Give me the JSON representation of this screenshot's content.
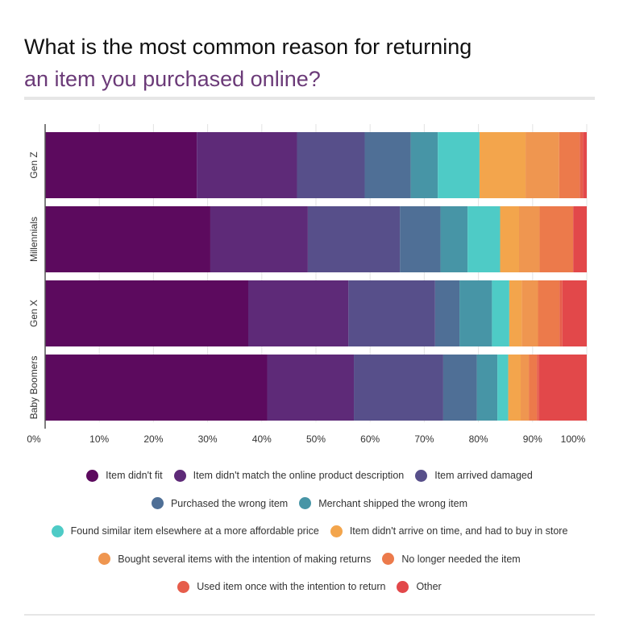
{
  "chart_data": {
    "type": "bar",
    "orientation": "horizontal",
    "stacked": true,
    "percent": true,
    "title": "What is the most common reason for returning an item you purchased online?",
    "title_lines": [
      "What is the most common reason for returning",
      "an item you purchased online?"
    ],
    "categories": [
      "Gen Z",
      "Millennials",
      "Gen X",
      "Baby Boomers"
    ],
    "xlim": [
      0,
      100
    ],
    "x_ticks": [
      "0%",
      "10%",
      "20%",
      "30%",
      "40%",
      "50%",
      "60%",
      "70%",
      "80%",
      "90%",
      "100%"
    ],
    "grid": true,
    "legend_position": "bottom",
    "series": [
      {
        "name": "Item didn't fit",
        "color": "#5c0a5e",
        "values": [
          28,
          30.5,
          37.5,
          41
        ]
      },
      {
        "name": "Item didn't match the online product description",
        "color": "#5e2a78",
        "values": [
          18.5,
          18,
          18.5,
          16
        ]
      },
      {
        "name": "Item arrived damaged",
        "color": "#574f8a",
        "values": [
          12.5,
          17,
          16,
          16.5
        ]
      },
      {
        "name": "Purchased the wrong item",
        "color": "#4f6f96",
        "values": [
          8.5,
          7.5,
          4.5,
          6.2
        ]
      },
      {
        "name": "Merchant shipped the wrong item",
        "color": "#4795a6",
        "values": [
          5,
          5,
          6,
          3.8
        ]
      },
      {
        "name": "Found similar item elsewhere at a more affordable price",
        "color": "#4ecbc6",
        "values": [
          7.7,
          6,
          3.2,
          2
        ]
      },
      {
        "name": "Item didn't arrive on time, and had to buy in store",
        "color": "#f3a54c",
        "values": [
          8.5,
          3.5,
          2.3,
          2.3
        ]
      },
      {
        "name": "Bought several items with the intention of making returns",
        "color": "#ef9650",
        "values": [
          6.2,
          3.8,
          3,
          1.5
        ]
      },
      {
        "name": "No longer needed the item",
        "color": "#ec7a4b",
        "values": [
          3.8,
          6.2,
          4,
          1.5
        ]
      },
      {
        "name": "Used item once with the intention to return",
        "color": "#e65d4b",
        "values": [
          0.6,
          0,
          0.5,
          0.4
        ]
      },
      {
        "name": "Other",
        "color": "#e2484a",
        "values": [
          0.7,
          2.5,
          4.5,
          8.8
        ]
      }
    ],
    "legend_rows": [
      [
        0,
        1,
        2
      ],
      [
        3,
        4
      ],
      [
        5,
        6
      ],
      [
        7,
        8
      ],
      [
        9,
        10
      ]
    ]
  }
}
